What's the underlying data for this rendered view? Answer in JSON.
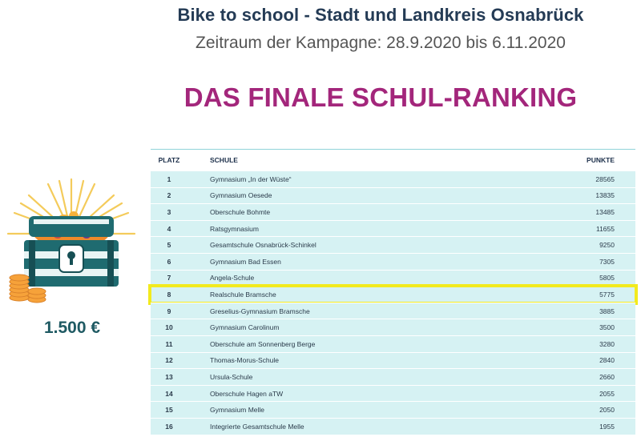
{
  "header": {
    "title": "Bike to school - Stadt und Landkreis Osnabrück",
    "subtitle": "Zeitraum der Kampagne: 28.9.2020 bis 6.11.2020",
    "headline": "DAS FINALE SCHUL-RANKING"
  },
  "prize": {
    "amount": "1.500 €",
    "icon": "treasure-chest-icon"
  },
  "ranking": {
    "columns": {
      "rank": "PLATZ",
      "school": "SCHULE",
      "points": "PUNKTE"
    },
    "highlight_rank": "8",
    "highlight_color": "#f2ea1e",
    "rows": [
      {
        "rank": "1",
        "school": "Gymnasium „In der Wüste“",
        "points": "28565"
      },
      {
        "rank": "2",
        "school": "Gymnasium Oesede",
        "points": "13835"
      },
      {
        "rank": "3",
        "school": "Oberschule Bohmte",
        "points": "13485"
      },
      {
        "rank": "4",
        "school": "Ratsgymnasium",
        "points": "11655"
      },
      {
        "rank": "5",
        "school": "Gesamtschule Osnabrück-Schinkel",
        "points": "9250"
      },
      {
        "rank": "6",
        "school": "Gymnasium Bad Essen",
        "points": "7305"
      },
      {
        "rank": "7",
        "school": "Angela-Schule",
        "points": "5805"
      },
      {
        "rank": "8",
        "school": "Realschule Bramsche",
        "points": "5775"
      },
      {
        "rank": "9",
        "school": "Greselius-Gymnasium Bramsche",
        "points": "3885"
      },
      {
        "rank": "10",
        "school": "Gymnasium Carolinum",
        "points": "3500"
      },
      {
        "rank": "11",
        "school": "Oberschule am Sonnenberg Berge",
        "points": "3280"
      },
      {
        "rank": "12",
        "school": "Thomas-Morus-Schule",
        "points": "2840"
      },
      {
        "rank": "13",
        "school": "Ursula-Schule",
        "points": "2660"
      },
      {
        "rank": "14",
        "school": "Oberschule Hagen aTW",
        "points": "2055"
      },
      {
        "rank": "15",
        "school": "Gymnasium Melle",
        "points": "2050"
      },
      {
        "rank": "16",
        "school": "Integrierte Gesamtschule Melle",
        "points": "1955"
      }
    ]
  },
  "colors": {
    "title": "#243b55",
    "headline": "#a3267b",
    "row_bg": "#d6f2f3",
    "prize_text": "#1f5a63"
  }
}
